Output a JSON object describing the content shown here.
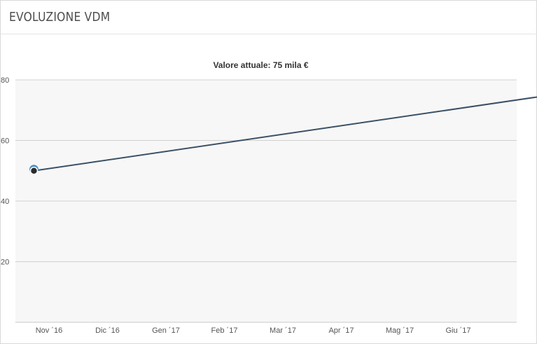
{
  "header": {
    "title": "EVOLUZIONE VDM"
  },
  "chart_data": {
    "type": "line",
    "title": "Valore attuale: 75 mila €",
    "xlabel": "",
    "ylabel": "",
    "x_tick_labels": [
      "Nov ´16",
      "Dic ´16",
      "Gen ´17",
      "Feb ´17",
      "Mar ´17",
      "Apr ´17",
      "Mag ´17",
      "Giu ´17"
    ],
    "y_tick_labels": [
      "20",
      "40",
      "60",
      "80"
    ],
    "ylim": [
      0,
      80
    ],
    "x": [
      "2016-10-24",
      "2017-07-19"
    ],
    "series": [
      {
        "values": [
          50,
          75
        ]
      }
    ],
    "grid": true,
    "colors": {
      "line": "#3b5166",
      "marker_outer": "#4a90c8",
      "marker_inner": "#2b2b2b",
      "plot_bg": "#f7f7f7",
      "grid": "#d0d0d0"
    }
  }
}
